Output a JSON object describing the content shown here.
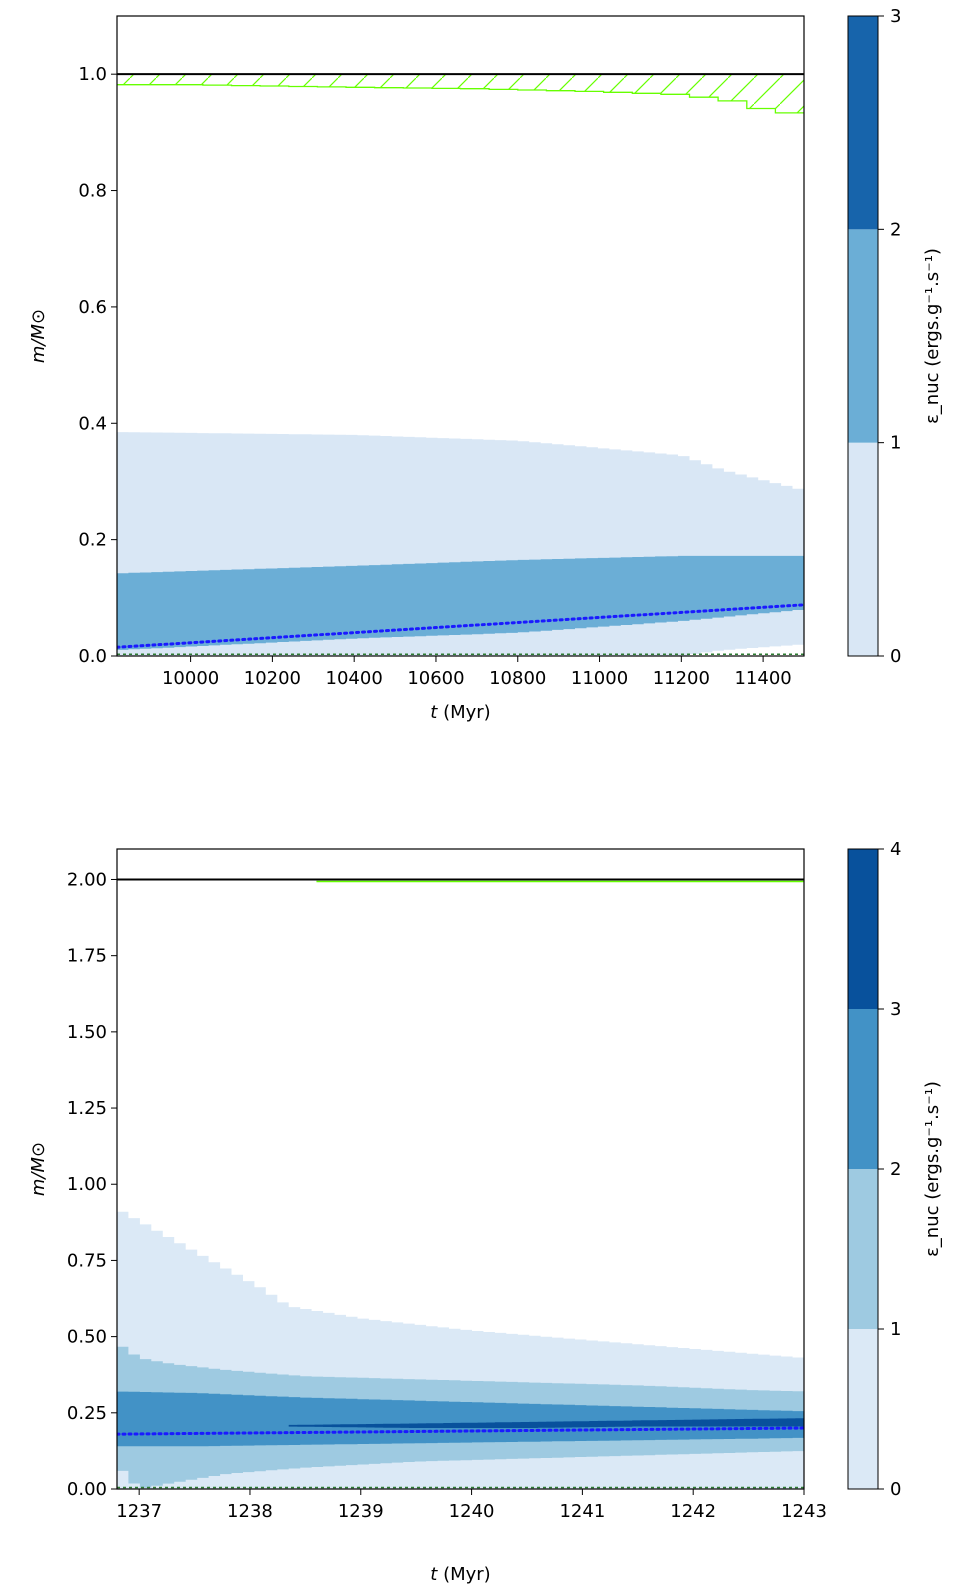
{
  "chart_data": [
    {
      "type": "area",
      "xlabel": "t (Myr)",
      "ylabel": "m/M⊙",
      "xlim": [
        9820,
        11500
      ],
      "ylim": [
        0,
        1.1
      ],
      "xticks": [
        10000,
        10200,
        10400,
        10600,
        10800,
        11000,
        11200,
        11400
      ],
      "yticks": [
        "0.0",
        "0.2",
        "0.4",
        "0.6",
        "0.8",
        "1.0"
      ],
      "colorbar": {
        "label": "ε_nuc (ergs.g⁻¹.s⁻¹)",
        "ticks": [
          "0",
          "1",
          "2",
          "3"
        ],
        "colors": [
          "#d9e7f5",
          "#6baed6",
          "#1764ab"
        ]
      },
      "total_mass": 1.0,
      "envelope_hatch_bottom": {
        "t": [
          9820,
          10000,
          10350,
          10700,
          11000,
          11200,
          11320,
          11400,
          11500
        ],
        "m": [
          0.982,
          0.982,
          0.978,
          0.975,
          0.97,
          0.965,
          0.955,
          0.94,
          0.93
        ]
      },
      "bands": [
        {
          "level": "0-1",
          "t": [
            9820,
            10400,
            10800,
            11200,
            11300,
            11500
          ],
          "lower": [
            0.0,
            0.0,
            0.0,
            0.0,
            0.01,
            0.02
          ],
          "upper": [
            0.385,
            0.38,
            0.37,
            0.345,
            0.32,
            0.285
          ]
        },
        {
          "level": "1-2",
          "t": [
            9820,
            10400,
            10800,
            11200,
            11500
          ],
          "lower": [
            0.01,
            0.03,
            0.04,
            0.06,
            0.08
          ],
          "upper": [
            0.142,
            0.155,
            0.165,
            0.172,
            0.172
          ]
        }
      ],
      "core_dotted": {
        "t": [
          9820,
          11500
        ],
        "m": [
          0.015,
          0.088
        ]
      },
      "bottom_dashed": 0.003
    },
    {
      "type": "area",
      "xlabel": "t (Myr)",
      "ylabel": "m/M⊙",
      "xlim": [
        1236.8,
        1243.0
      ],
      "ylim": [
        0,
        2.1
      ],
      "xticks": [
        1237,
        1238,
        1239,
        1240,
        1241,
        1242,
        1243
      ],
      "yticks": [
        "0.00",
        "0.25",
        "0.50",
        "0.75",
        "1.00",
        "1.25",
        "1.50",
        "1.75",
        "2.00"
      ],
      "colorbar": {
        "label": "ε_nuc (ergs.g⁻¹.s⁻¹)",
        "ticks": [
          "0",
          "1",
          "2",
          "3",
          "4"
        ],
        "colors": [
          "#dbe9f6",
          "#9ecae1",
          "#4292c6",
          "#08519c"
        ]
      },
      "total_mass": 2.0,
      "bands": [
        {
          "level": "0-1",
          "t": [
            1236.8,
            1237.3,
            1237.8,
            1238.1,
            1238.35,
            1239.0,
            1240.0,
            1241.0,
            1242.0,
            1243.0
          ],
          "lower": [
            0.0,
            0.0,
            0.0,
            0.0,
            0.0,
            0.0,
            0.0,
            0.0,
            0.0,
            0.0
          ],
          "upper": [
            0.92,
            0.82,
            0.72,
            0.66,
            0.6,
            0.56,
            0.52,
            0.49,
            0.46,
            0.43
          ]
        },
        {
          "level": "1-2",
          "t": [
            1236.8,
            1237.0,
            1237.3,
            1237.8,
            1238.5,
            1239.5,
            1240.5,
            1241.5,
            1242.5,
            1243.0
          ],
          "lower": [
            0.08,
            0.0,
            0.02,
            0.05,
            0.07,
            0.09,
            0.1,
            0.11,
            0.12,
            0.125
          ],
          "upper": [
            0.48,
            0.43,
            0.41,
            0.39,
            0.37,
            0.36,
            0.35,
            0.34,
            0.325,
            0.32
          ]
        },
        {
          "level": "2-3",
          "t": [
            1236.8,
            1237.5,
            1238.5,
            1239.5,
            1240.5,
            1241.5,
            1242.5,
            1243.0
          ],
          "lower": [
            0.14,
            0.14,
            0.145,
            0.15,
            0.155,
            0.16,
            0.165,
            0.168
          ],
          "upper": [
            0.32,
            0.315,
            0.3,
            0.29,
            0.28,
            0.27,
            0.26,
            0.255
          ]
        },
        {
          "level": "3-4",
          "t": [
            1238.35,
            1239.5,
            1240.5,
            1241.5,
            1242.5,
            1243.0
          ],
          "lower": [
            0.205,
            0.2,
            0.2,
            0.205,
            0.205,
            0.205
          ],
          "upper": [
            0.21,
            0.215,
            0.22,
            0.225,
            0.23,
            0.232
          ]
        }
      ],
      "core_dotted": {
        "t": [
          1236.8,
          1243.0
        ],
        "m": [
          0.18,
          0.2
        ]
      },
      "bottom_dashed": 0.005
    }
  ]
}
